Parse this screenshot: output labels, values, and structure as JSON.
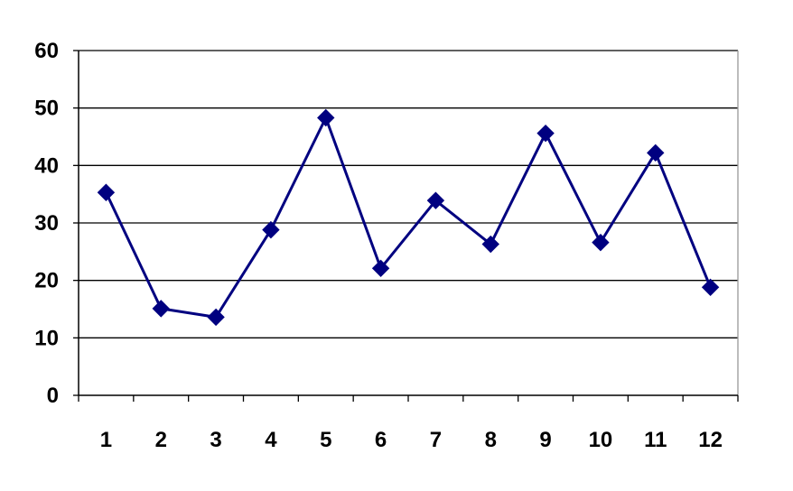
{
  "chart_data": {
    "type": "line",
    "title": "",
    "xlabel": "",
    "ylabel": "",
    "categories": [
      "1",
      "2",
      "3",
      "4",
      "5",
      "6",
      "7",
      "8",
      "9",
      "10",
      "11",
      "12"
    ],
    "series": [
      {
        "values": [
          35.3,
          15.1,
          13.6,
          28.8,
          48.3,
          22.1,
          33.9,
          26.3,
          45.6,
          26.6,
          42.2,
          18.8
        ],
        "marker": "diamond",
        "color": "#000080"
      }
    ],
    "ylim": [
      0,
      60
    ],
    "yticks": [
      "0",
      "10",
      "20",
      "30",
      "40",
      "50",
      "60"
    ],
    "grid": "horizontal",
    "legend": "none"
  }
}
